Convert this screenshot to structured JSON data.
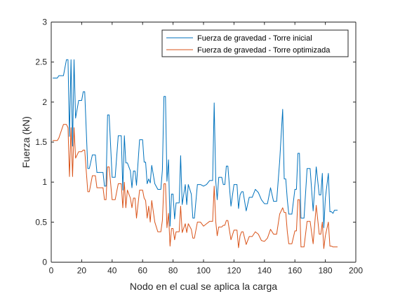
{
  "chart_data": {
    "type": "line",
    "title": "",
    "xlabel": "Nodo en el cual se aplica la carga",
    "ylabel": "Fuerza (kN)",
    "xlim": [
      0,
      200
    ],
    "ylim": [
      0,
      3
    ],
    "xticks": [
      0,
      20,
      40,
      60,
      80,
      100,
      120,
      140,
      160,
      180,
      200
    ],
    "yticks": [
      0,
      0.5,
      1,
      1.5,
      2,
      2.5,
      3
    ],
    "xtick_labels": [
      "0",
      "20",
      "40",
      "60",
      "80",
      "100",
      "120",
      "140",
      "160",
      "180",
      "200"
    ],
    "ytick_labels": [
      "0",
      "0.5",
      "1",
      "1.5",
      "2",
      "2.5",
      "3"
    ],
    "grid": false,
    "legend_position": "top-right",
    "series": [
      {
        "name": "Fuerza de gravedad - Torre inicial",
        "color": "#0072BD",
        "x": [
          1,
          4,
          5,
          8,
          10,
          11,
          12,
          13,
          14,
          15,
          16,
          18,
          20,
          21,
          22,
          24,
          25,
          27,
          29,
          30,
          32,
          34,
          35,
          36,
          37,
          38,
          40,
          42,
          44,
          46,
          47,
          48,
          49,
          50,
          52,
          53,
          54,
          55,
          56,
          58,
          60,
          61,
          62,
          63,
          64,
          65,
          66,
          68,
          70,
          72,
          73,
          74,
          75,
          76,
          77,
          78,
          79,
          80,
          81,
          82,
          84,
          85,
          86,
          88,
          89,
          90,
          92,
          93,
          94,
          96,
          98,
          100,
          102,
          104,
          106,
          107,
          108,
          109,
          110,
          112,
          113,
          114,
          115,
          116,
          118,
          120,
          122,
          123,
          124,
          125,
          126,
          128,
          130,
          132,
          134,
          136,
          138,
          140,
          142,
          144,
          146,
          148,
          150,
          152,
          153,
          154,
          155,
          156,
          158,
          160,
          161,
          162,
          163,
          164,
          166,
          168,
          170,
          172,
          174,
          176,
          177,
          178,
          179,
          180,
          182,
          183,
          184,
          185,
          186,
          188
        ],
        "y": [
          2.3,
          2.3,
          2.33,
          2.33,
          2.53,
          2.53,
          1.57,
          2.53,
          1.45,
          2.53,
          1.8,
          2.02,
          2.02,
          2.13,
          2.13,
          1.17,
          1.17,
          1.34,
          1.34,
          1.12,
          1.12,
          1.12,
          0.95,
          0.95,
          1.84,
          1.84,
          1.06,
          1.06,
          1.58,
          1.58,
          0.9,
          1.58,
          1.24,
          1.24,
          1.14,
          0.93,
          1.14,
          1.14,
          0.96,
          1.53,
          1.53,
          1.25,
          1.25,
          0.98,
          1.04,
          0.99,
          1.21,
          0.98,
          0.91,
          0.91,
          1.15,
          2.07,
          2.07,
          1.01,
          1.28,
          0.45,
          0.85,
          0.85,
          0.54,
          0.74,
          0.74,
          1.33,
          0.72,
          0.97,
          0.72,
          0.97,
          0.85,
          0.55,
          0.55,
          0.97,
          0.97,
          0.95,
          0.97,
          1.02,
          1.02,
          1.99,
          1.02,
          0.78,
          1.06,
          1.06,
          0.97,
          0.97,
          1.2,
          1.2,
          0.7,
          0.97,
          0.97,
          0.67,
          0.84,
          0.88,
          0.88,
          0.64,
          0.81,
          0.81,
          0.91,
          0.87,
          0.78,
          0.73,
          0.73,
          0.93,
          0.76,
          0.76,
          1.26,
          1.91,
          1.04,
          1.04,
          0.78,
          0.6,
          0.6,
          0.91,
          0.91,
          1.36,
          1.36,
          0.55,
          0.55,
          1.17,
          1.17,
          0.64,
          1.19,
          0.84,
          0.84,
          1.11,
          0.43,
          0.8,
          1.11,
          0.63,
          0.63,
          0.61,
          0.65,
          0.65
        ]
      },
      {
        "name": "Fuerza de gravedad - Torre optimizada",
        "color": "#D95319",
        "x": [
          1,
          4,
          5,
          8,
          10,
          11,
          12,
          13,
          14,
          15,
          16,
          18,
          20,
          21,
          22,
          24,
          25,
          27,
          29,
          30,
          32,
          34,
          35,
          36,
          37,
          38,
          40,
          42,
          44,
          46,
          47,
          48,
          49,
          50,
          52,
          53,
          54,
          55,
          56,
          58,
          60,
          61,
          62,
          63,
          64,
          65,
          66,
          68,
          70,
          72,
          73,
          74,
          75,
          76,
          77,
          78,
          79,
          80,
          81,
          82,
          84,
          85,
          86,
          88,
          89,
          90,
          92,
          93,
          94,
          96,
          98,
          100,
          102,
          104,
          106,
          107,
          108,
          109,
          110,
          112,
          113,
          114,
          115,
          116,
          118,
          120,
          122,
          123,
          124,
          125,
          126,
          128,
          130,
          132,
          134,
          136,
          138,
          140,
          142,
          144,
          146,
          148,
          150,
          152,
          153,
          154,
          155,
          156,
          158,
          160,
          161,
          162,
          163,
          164,
          166,
          168,
          170,
          172,
          174,
          176,
          177,
          178,
          179,
          180,
          182,
          183,
          184,
          185,
          186,
          188
        ],
        "y": [
          1.52,
          1.52,
          1.55,
          1.72,
          1.72,
          1.68,
          1.07,
          1.68,
          1.07,
          1.68,
          1.3,
          1.38,
          1.38,
          1.4,
          1.4,
          0.88,
          0.88,
          1.08,
          1.08,
          0.93,
          0.93,
          0.93,
          0.78,
          0.78,
          1.19,
          1.19,
          0.78,
          0.78,
          0.98,
          0.98,
          0.68,
          1.0,
          0.68,
          0.9,
          0.8,
          0.68,
          0.8,
          0.8,
          0.55,
          0.9,
          0.9,
          0.8,
          0.77,
          0.55,
          0.7,
          0.5,
          0.77,
          0.5,
          0.38,
          0.38,
          0.52,
          0.98,
          0.98,
          0.43,
          0.61,
          0.2,
          0.42,
          0.42,
          0.28,
          0.38,
          0.38,
          0.7,
          0.37,
          0.48,
          0.37,
          0.48,
          0.41,
          0.3,
          0.3,
          0.5,
          0.5,
          0.45,
          0.48,
          0.51,
          0.51,
          0.95,
          0.51,
          0.33,
          0.44,
          0.44,
          0.46,
          0.46,
          0.52,
          0.52,
          0.28,
          0.4,
          0.4,
          0.18,
          0.33,
          0.38,
          0.38,
          0.22,
          0.32,
          0.32,
          0.38,
          0.35,
          0.27,
          0.26,
          0.3,
          0.41,
          0.35,
          0.35,
          0.6,
          0.68,
          0.62,
          0.62,
          0.38,
          0.23,
          0.23,
          0.39,
          0.39,
          0.78,
          0.78,
          0.19,
          0.19,
          0.51,
          0.51,
          0.23,
          0.71,
          0.35,
          0.35,
          0.5,
          0.17,
          0.33,
          0.5,
          0.2,
          0.2,
          0.19,
          0.19,
          0.19
        ]
      }
    ]
  }
}
